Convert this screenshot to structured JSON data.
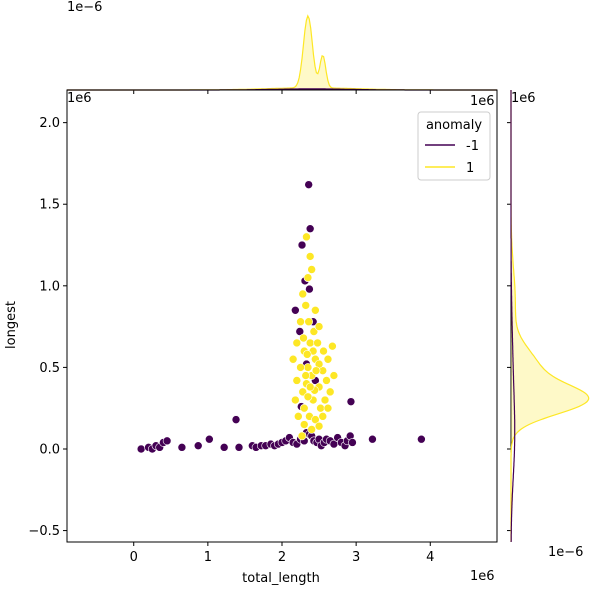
{
  "chart_data": {
    "type": "scatter",
    "kind": "joint plot with marginal KDE curves",
    "xlabel": "total_length",
    "ylabel": "longest",
    "x_offset_label": "1e6",
    "y_offset_label": "1e6",
    "top_marginal_offset_label": "1e−6",
    "right_marginal_offset_label": "1e−6",
    "xlim": [
      -0.9,
      4.9
    ],
    "ylim": [
      -0.57,
      2.2
    ],
    "x_ticks": [
      0,
      1,
      2,
      3,
      4
    ],
    "y_ticks": [
      -0.5,
      0.0,
      0.5,
      1.0,
      1.5,
      2.0
    ],
    "x_tick_labels": [
      "0",
      "1",
      "2",
      "3",
      "4"
    ],
    "y_tick_labels": [
      "−0.5",
      "0.0",
      "0.5",
      "1.0",
      "1.5",
      "2.0"
    ],
    "grid": false,
    "legend": {
      "title": "anomaly",
      "placement": "top-right",
      "entries": [
        {
          "label": "-1",
          "color": "#440154"
        },
        {
          "label": "1",
          "color": "#fde725"
        }
      ]
    },
    "series": [
      {
        "name": "-1",
        "color": "#440154",
        "points": [
          [
            0.1,
            0.0
          ],
          [
            0.2,
            0.01
          ],
          [
            0.25,
            0.0
          ],
          [
            0.3,
            0.02
          ],
          [
            0.35,
            0.01
          ],
          [
            0.4,
            0.04
          ],
          [
            0.45,
            0.05
          ],
          [
            0.65,
            0.01
          ],
          [
            0.87,
            0.02
          ],
          [
            1.02,
            0.06
          ],
          [
            1.22,
            0.01
          ],
          [
            1.38,
            0.18
          ],
          [
            1.42,
            0.01
          ],
          [
            1.6,
            0.02
          ],
          [
            1.65,
            0.01
          ],
          [
            1.72,
            0.02
          ],
          [
            1.78,
            0.02
          ],
          [
            1.85,
            0.03
          ],
          [
            1.9,
            0.02
          ],
          [
            1.95,
            0.03
          ],
          [
            2.0,
            0.04
          ],
          [
            2.05,
            0.05
          ],
          [
            2.1,
            0.07
          ],
          [
            2.15,
            0.04
          ],
          [
            2.2,
            0.03
          ],
          [
            2.25,
            0.06
          ],
          [
            2.3,
            0.05
          ],
          [
            2.33,
            0.1
          ],
          [
            2.37,
            0.09
          ],
          [
            2.4,
            0.08
          ],
          [
            2.43,
            0.05
          ],
          [
            2.47,
            0.04
          ],
          [
            2.5,
            0.06
          ],
          [
            2.53,
            0.02
          ],
          [
            2.57,
            0.04
          ],
          [
            2.6,
            0.06
          ],
          [
            2.65,
            0.05
          ],
          [
            2.7,
            0.03
          ],
          [
            2.75,
            0.07
          ],
          [
            2.8,
            0.04
          ],
          [
            2.85,
            0.02
          ],
          [
            2.88,
            0.05
          ],
          [
            2.92,
            0.08
          ],
          [
            2.95,
            0.04
          ],
          [
            3.22,
            0.06
          ],
          [
            3.88,
            0.06
          ],
          [
            2.18,
            0.85
          ],
          [
            2.27,
            1.25
          ],
          [
            2.36,
            1.62
          ],
          [
            2.38,
            1.35
          ],
          [
            2.31,
            1.03
          ],
          [
            2.37,
            0.98
          ],
          [
            2.42,
            0.78
          ],
          [
            2.24,
            0.72
          ],
          [
            2.93,
            0.29
          ],
          [
            2.26,
            0.26
          ],
          [
            2.33,
            0.52
          ],
          [
            2.45,
            0.42
          ]
        ]
      },
      {
        "name": "1",
        "color": "#fde725",
        "points": [
          [
            2.3,
            0.6
          ],
          [
            2.35,
            0.5
          ],
          [
            2.4,
            0.45
          ],
          [
            2.45,
            0.55
          ],
          [
            2.38,
            0.65
          ],
          [
            2.33,
            0.4
          ],
          [
            2.28,
            0.35
          ],
          [
            2.42,
            0.3
          ],
          [
            2.5,
            0.38
          ],
          [
            2.55,
            0.48
          ],
          [
            2.6,
            0.42
          ],
          [
            2.62,
            0.55
          ],
          [
            2.25,
            0.5
          ],
          [
            2.2,
            0.42
          ],
          [
            2.18,
            0.3
          ],
          [
            2.3,
            0.25
          ],
          [
            2.37,
            0.2
          ],
          [
            2.45,
            0.18
          ],
          [
            2.52,
            0.25
          ],
          [
            2.58,
            0.3
          ],
          [
            2.65,
            0.35
          ],
          [
            2.48,
            0.65
          ],
          [
            2.43,
            0.72
          ],
          [
            2.36,
            0.78
          ],
          [
            2.32,
            0.88
          ],
          [
            2.28,
            0.95
          ],
          [
            2.35,
            1.05
          ],
          [
            2.4,
            1.1
          ],
          [
            2.38,
            1.18
          ],
          [
            2.33,
            1.3
          ],
          [
            2.3,
            0.15
          ],
          [
            2.4,
            0.12
          ],
          [
            2.5,
            0.14
          ],
          [
            2.55,
            0.2
          ],
          [
            2.22,
            0.2
          ],
          [
            2.27,
            0.08
          ],
          [
            2.35,
            0.32
          ],
          [
            2.44,
            0.36
          ],
          [
            2.5,
            0.52
          ],
          [
            2.56,
            0.6
          ],
          [
            2.68,
            0.63
          ],
          [
            2.7,
            0.45
          ],
          [
            2.62,
            0.25
          ],
          [
            2.15,
            0.55
          ],
          [
            2.2,
            0.65
          ],
          [
            2.25,
            0.78
          ],
          [
            2.45,
            0.85
          ],
          [
            2.5,
            0.75
          ],
          [
            2.32,
            0.45
          ],
          [
            2.38,
            0.38
          ],
          [
            2.42,
            0.6
          ],
          [
            2.46,
            0.48
          ],
          [
            2.29,
            0.68
          ],
          [
            2.34,
            0.58
          ]
        ]
      }
    ],
    "marginal_kde": {
      "x_density_note": "top marginal: peak near total_length 2.35e6 with a smaller shoulder near 2.55e6",
      "y_density_note": "right marginal: peak near longest 0.3e6"
    }
  }
}
